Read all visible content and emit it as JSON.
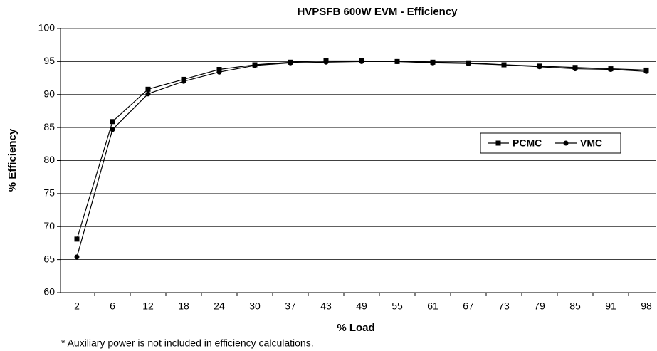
{
  "chart_data": {
    "type": "line",
    "title": "HVPSFB 600W EVM - Efficiency",
    "xlabel": "% Load",
    "ylabel": "% Efficiency",
    "annotation": "* Auxiliary power is not included in efficiency calculations.",
    "categories": [
      "2",
      "6",
      "12",
      "18",
      "24",
      "30",
      "37",
      "43",
      "49",
      "55",
      "61",
      "67",
      "73",
      "79",
      "85",
      "91",
      "98"
    ],
    "series": [
      {
        "name": "PCMC",
        "color": "#000000",
        "marker": "square",
        "values": [
          68.1,
          85.9,
          90.8,
          92.3,
          93.8,
          94.5,
          94.9,
          95.1,
          95.1,
          95.0,
          94.9,
          94.8,
          94.5,
          94.3,
          94.1,
          93.9,
          93.7
        ]
      },
      {
        "name": "VMC",
        "color": "#000000",
        "marker": "circle",
        "values": [
          65.4,
          84.7,
          90.1,
          92.0,
          93.4,
          94.4,
          94.8,
          94.9,
          95.0,
          95.0,
          94.8,
          94.7,
          94.5,
          94.2,
          93.9,
          93.8,
          93.5
        ]
      }
    ],
    "ylim": [
      60,
      100
    ],
    "yticks": [
      60,
      65,
      70,
      75,
      80,
      85,
      90,
      95,
      100
    ],
    "grid": true,
    "legend": "right"
  }
}
